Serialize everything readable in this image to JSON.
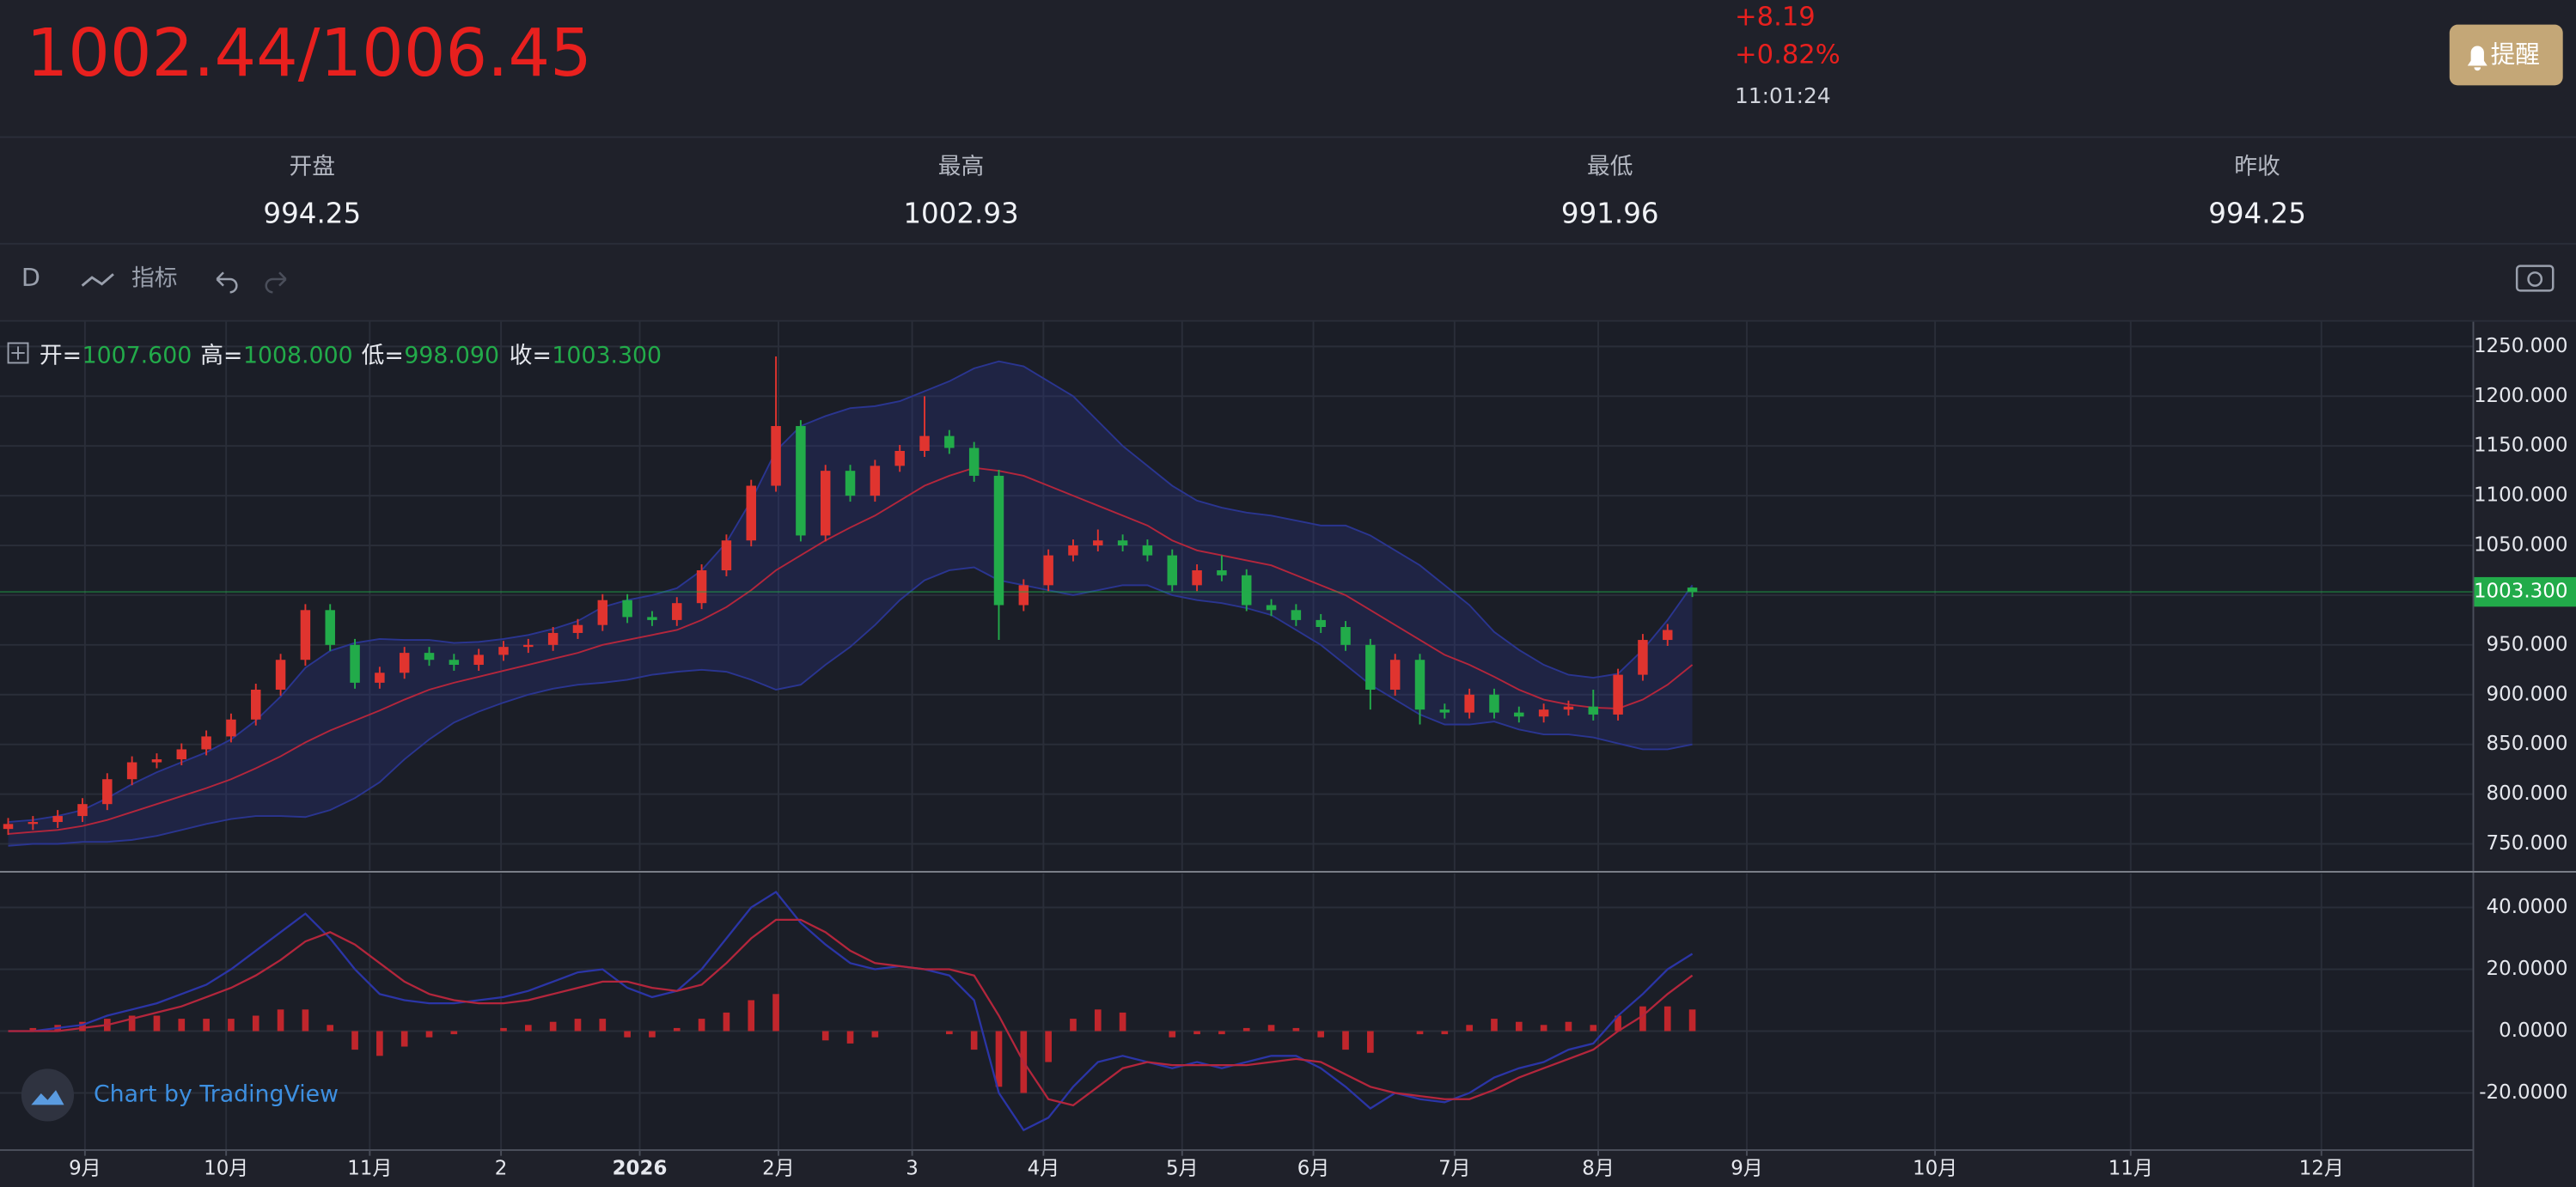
{
  "header": {
    "price": "1002.44/1006.45",
    "change": "+8.19",
    "change_pct": "+0.82%",
    "time": "11:01:24",
    "alert_button": "提醒"
  },
  "stats": [
    {
      "label": "开盘",
      "value": "994.25"
    },
    {
      "label": "最高",
      "value": "1002.93"
    },
    {
      "label": "最低",
      "value": "991.96"
    },
    {
      "label": "昨收",
      "value": "994.25"
    }
  ],
  "toolbar": {
    "interval": "D",
    "indicators": "指标"
  },
  "watermark": "Chart by TradingView",
  "chart_data": [
    {
      "type": "candlestick",
      "legend": [
        {
          "label": "开=",
          "value": "1007.600"
        },
        {
          "label": "高=",
          "value": "1008.000"
        },
        {
          "label": "低=",
          "value": "998.090"
        },
        {
          "label": "收=",
          "value": "1003.300"
        }
      ],
      "up_color": "#e0342f",
      "down_color": "#22ab4a",
      "ma_color": "#b3263c",
      "band_color": "#2a3590",
      "xlim": [
        -0.33,
        99.5
      ],
      "ylim": [
        723.6,
        1274.8
      ],
      "yticks": [
        {
          "value": 750,
          "label": "750.000"
        },
        {
          "value": 800,
          "label": "800.000"
        },
        {
          "value": 850,
          "label": "850.000"
        },
        {
          "value": 900,
          "label": "900.000"
        },
        {
          "value": 950,
          "label": "950.000"
        },
        {
          "value": 1000,
          "label": "1000.000"
        },
        {
          "value": 1050,
          "label": "1050.000"
        },
        {
          "value": 1100,
          "label": "1100.000"
        },
        {
          "value": 1150,
          "label": "1150.000"
        },
        {
          "value": 1200,
          "label": "1200.000"
        },
        {
          "value": 1250,
          "label": "1250.000"
        }
      ],
      "price_marker": {
        "value": 1003.3,
        "label": "1003.300"
      },
      "open": [
        765,
        770,
        772,
        778,
        790,
        815,
        832,
        835,
        845,
        858,
        875,
        905,
        935,
        985,
        950,
        912,
        922,
        942,
        935,
        930,
        940,
        948,
        950,
        962,
        970,
        995,
        978,
        975,
        992,
        1025,
        1055,
        1110,
        1170,
        1060,
        1125,
        1100,
        1130,
        1145,
        1160,
        1148,
        1120,
        990,
        1010,
        1040,
        1050,
        1055,
        1050,
        1040,
        1010,
        1025,
        1020,
        990,
        985,
        975,
        968,
        950,
        905,
        935,
        885,
        882,
        900,
        882,
        878,
        885,
        888,
        880,
        920,
        955,
        1007.6
      ],
      "high": [
        776,
        778,
        784,
        796,
        821,
        838,
        841,
        851,
        864,
        881,
        911,
        941,
        991,
        991,
        956,
        928,
        948,
        948,
        941,
        946,
        954,
        956,
        968,
        976,
        1001,
        1001,
        984,
        998,
        1031,
        1061,
        1116,
        1240,
        1176,
        1131,
        1131,
        1136,
        1151,
        1200,
        1166,
        1154,
        1126,
        1016,
        1046,
        1056,
        1066,
        1061,
        1056,
        1046,
        1031,
        1040,
        1026,
        996,
        991,
        981,
        974,
        956,
        941,
        941,
        891,
        906,
        906,
        888,
        891,
        894,
        905,
        926,
        961,
        971,
        1008
      ],
      "low": [
        759,
        764,
        766,
        772,
        784,
        809,
        826,
        829,
        839,
        852,
        869,
        899,
        929,
        944,
        906,
        906,
        916,
        929,
        924,
        924,
        934,
        942,
        944,
        956,
        964,
        972,
        969,
        969,
        986,
        1019,
        1049,
        1104,
        1054,
        1054,
        1094,
        1094,
        1124,
        1139,
        1142,
        1114,
        955,
        984,
        1004,
        1034,
        1044,
        1044,
        1034,
        1004,
        1004,
        1014,
        984,
        979,
        969,
        962,
        944,
        885,
        899,
        870,
        876,
        876,
        876,
        872,
        872,
        879,
        874,
        874,
        914,
        949,
        998.09
      ],
      "close": [
        770,
        772,
        778,
        790,
        815,
        832,
        835,
        845,
        858,
        875,
        905,
        935,
        985,
        950,
        912,
        922,
        942,
        935,
        930,
        940,
        948,
        950,
        962,
        970,
        995,
        978,
        975,
        992,
        1025,
        1055,
        1110,
        1170,
        1060,
        1125,
        1100,
        1130,
        1145,
        1160,
        1148,
        1120,
        990,
        1010,
        1040,
        1050,
        1055,
        1050,
        1040,
        1010,
        1025,
        1020,
        990,
        985,
        975,
        968,
        950,
        905,
        935,
        885,
        882,
        900,
        882,
        878,
        885,
        888,
        880,
        920,
        955,
        965,
        1003.3
      ],
      "ma": [
        760,
        762,
        764,
        768,
        774,
        782,
        790,
        798,
        806,
        815,
        826,
        838,
        852,
        864,
        874,
        884,
        895,
        905,
        912,
        918,
        924,
        930,
        936,
        942,
        950,
        955,
        960,
        965,
        975,
        988,
        1005,
        1025,
        1040,
        1055,
        1068,
        1080,
        1095,
        1110,
        1120,
        1128,
        1125,
        1120,
        1110,
        1100,
        1090,
        1080,
        1070,
        1055,
        1045,
        1040,
        1035,
        1030,
        1020,
        1010,
        1000,
        985,
        970,
        955,
        940,
        930,
        918,
        905,
        895,
        890,
        887,
        886,
        895,
        910,
        930
      ],
      "upper": [
        772,
        774,
        778,
        784,
        796,
        810,
        822,
        832,
        842,
        855,
        874,
        898,
        927,
        944,
        952,
        956,
        955,
        955,
        952,
        953,
        956,
        960,
        966,
        974,
        988,
        995,
        1000,
        1007,
        1025,
        1053,
        1095,
        1145,
        1170,
        1180,
        1188,
        1190,
        1195,
        1205,
        1215,
        1228,
        1235,
        1230,
        1215,
        1200,
        1175,
        1150,
        1130,
        1110,
        1095,
        1088,
        1083,
        1080,
        1075,
        1070,
        1070,
        1060,
        1045,
        1030,
        1010,
        990,
        963,
        945,
        930,
        920,
        917,
        921,
        945,
        975,
        1010
      ],
      "lower": [
        748,
        750,
        750,
        752,
        752,
        754,
        758,
        764,
        770,
        775,
        778,
        778,
        777,
        784,
        796,
        812,
        835,
        855,
        872,
        883,
        892,
        900,
        906,
        910,
        912,
        915,
        920,
        923,
        925,
        923,
        915,
        905,
        910,
        930,
        948,
        970,
        995,
        1015,
        1025,
        1028,
        1015,
        1010,
        1005,
        1000,
        1005,
        1010,
        1010,
        1000,
        995,
        992,
        987,
        980,
        965,
        950,
        930,
        910,
        895,
        880,
        870,
        870,
        873,
        865,
        860,
        860,
        857,
        851,
        845,
        845,
        850
      ]
    },
    {
      "type": "macd",
      "macd_color": "#2b35a6",
      "signal_color": "#b3263c",
      "hist_color": "#c0262c",
      "xlim": [
        -0.33,
        99.5
      ],
      "ylim": [
        -38.2,
        51
      ],
      "yticks": [
        {
          "value": 40,
          "label": "40.0000"
        },
        {
          "value": 20,
          "label": "20.0000"
        },
        {
          "value": 0,
          "label": "0.0000"
        },
        {
          "value": -20,
          "label": "-20.0000"
        }
      ],
      "xticks": [
        {
          "value": 3.1,
          "label": "9月"
        },
        {
          "value": 8.8,
          "label": "10月"
        },
        {
          "value": 14.6,
          "label": "11月"
        },
        {
          "value": 19.9,
          "label": "2"
        },
        {
          "value": 25.5,
          "label": "2026"
        },
        {
          "value": 31.1,
          "label": "2月"
        },
        {
          "value": 36.5,
          "label": "3"
        },
        {
          "value": 41.8,
          "label": "4月"
        },
        {
          "value": 47.4,
          "label": "5月"
        },
        {
          "value": 52.7,
          "label": "6月"
        },
        {
          "value": 58.4,
          "label": "7月"
        },
        {
          "value": 64.2,
          "label": "8月"
        },
        {
          "value": 70.2,
          "label": "9月"
        },
        {
          "value": 77.8,
          "label": "10月"
        },
        {
          "value": 85.7,
          "label": "11月"
        },
        {
          "value": 93.4,
          "label": "12月"
        }
      ],
      "macd": [
        0,
        0,
        1,
        2,
        5,
        7,
        9,
        12,
        15,
        20,
        26,
        32,
        38,
        30,
        20,
        12,
        10,
        9,
        9,
        10,
        11,
        13,
        16,
        19,
        20,
        14,
        11,
        13,
        20,
        30,
        40,
        45,
        35,
        28,
        22,
        20,
        21,
        20,
        18,
        10,
        -20,
        -32,
        -28,
        -18,
        -10,
        -8,
        -10,
        -12,
        -10,
        -12,
        -10,
        -8,
        -8,
        -12,
        -18,
        -25,
        -20,
        -22,
        -23,
        -20,
        -15,
        -12,
        -10,
        -6,
        -4,
        5,
        12,
        20,
        25
      ],
      "signal": [
        0,
        0,
        0,
        1,
        2,
        4,
        6,
        8,
        11,
        14,
        18,
        23,
        29,
        32,
        28,
        22,
        16,
        12,
        10,
        9,
        9,
        10,
        12,
        14,
        16,
        16,
        14,
        13,
        15,
        22,
        30,
        36,
        36,
        32,
        26,
        22,
        21,
        20,
        20,
        18,
        5,
        -10,
        -22,
        -24,
        -18,
        -12,
        -10,
        -11,
        -11,
        -11,
        -11,
        -10,
        -9,
        -10,
        -14,
        -18,
        -20,
        -21,
        -22,
        -22,
        -19,
        -15,
        -12,
        -9,
        -6,
        0,
        5,
        12,
        18
      ],
      "hist": [
        0,
        1,
        2,
        3,
        4,
        5,
        5,
        4,
        4,
        4,
        5,
        7,
        7,
        2,
        -6,
        -8,
        -5,
        -2,
        -1,
        0,
        1,
        2,
        3,
        4,
        4,
        -2,
        -2,
        1,
        4,
        6,
        10,
        12,
        0,
        -3,
        -4,
        -2,
        0,
        0,
        -1,
        -6,
        -18,
        -20,
        -10,
        4,
        7,
        6,
        0,
        -2,
        -1,
        -1,
        1,
        2,
        1,
        -2,
        -6,
        -7,
        0,
        -1,
        -1,
        2,
        4,
        3,
        2,
        3,
        2,
        5,
        8,
        8,
        7
      ]
    }
  ]
}
